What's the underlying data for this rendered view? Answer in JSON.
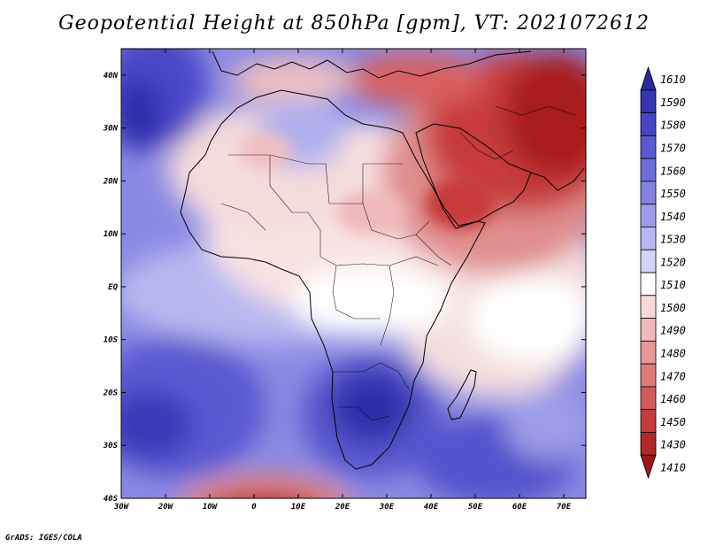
{
  "title": "Geopotential Height at 850hPa [gpm], VT: 2021072612",
  "footer": "GrADS: IGES/COLA",
  "map": {
    "lat_labels": [
      "40N",
      "30N",
      "20N",
      "10N",
      "EQ",
      "10S",
      "20S",
      "30S",
      "40S"
    ],
    "lon_labels": [
      "30W",
      "20W",
      "10W",
      "0",
      "10E",
      "20E",
      "30E",
      "40E",
      "50E",
      "60E",
      "70E"
    ],
    "lon_range": [
      -30,
      75
    ],
    "lat_range": [
      -40,
      45
    ]
  },
  "colorbar": {
    "labels": [
      "1610",
      "1590",
      "1580",
      "1570",
      "1560",
      "1550",
      "1540",
      "1530",
      "1520",
      "1510",
      "1500",
      "1490",
      "1480",
      "1470",
      "1460",
      "1450",
      "1430",
      "1410"
    ],
    "colors": [
      "#2a2a9a",
      "#3636b0",
      "#4646c4",
      "#5a5ad0",
      "#6e6ed8",
      "#8484e0",
      "#9c9ce8",
      "#b8b8f0",
      "#d4d4f6",
      "#ffffff",
      "#f8d8d8",
      "#f0b8b8",
      "#e69898",
      "#dc7a7a",
      "#d25a5a",
      "#c43c3c",
      "#b02828",
      "#9a1818"
    ]
  }
}
